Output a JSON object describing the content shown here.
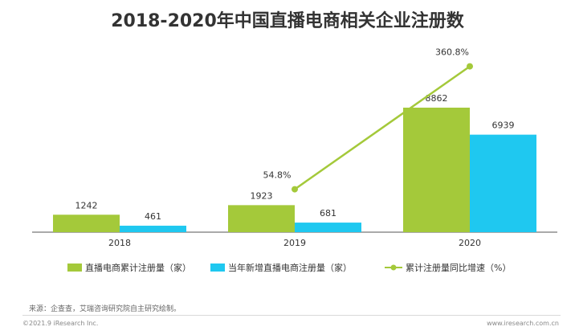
{
  "title": "2018-2020年中国直播电商相关企业注册数",
  "chart_data": {
    "type": "bar",
    "categories": [
      "2018",
      "2019",
      "2020"
    ],
    "series": [
      {
        "name": "直播电商累计注册量（家）",
        "values": [
          1242,
          1923,
          8862
        ],
        "color": "#a4c93a",
        "kind": "bar"
      },
      {
        "name": "当年新增直播电商注册量（家）",
        "values": [
          461,
          681,
          6939
        ],
        "color": "#1fc8f0",
        "kind": "bar"
      },
      {
        "name": "累计注册量同比增速（%）",
        "values": [
          null,
          54.8,
          360.8
        ],
        "labels": [
          "",
          "54.8%",
          "360.8%"
        ],
        "color": "#a4c93a",
        "kind": "line"
      }
    ],
    "value_labels": {
      "cumulative": [
        "1242",
        "1923",
        "8862"
      ],
      "new": [
        "461",
        "681",
        "6939"
      ]
    },
    "grid": false,
    "legend_position": "bottom"
  },
  "footer": {
    "source": "来源：企查查，艾瑞咨询研究院自主研究绘制。",
    "copyright": "©2021.9 iResearch Inc.",
    "url": "www.iresearch.com.cn"
  }
}
